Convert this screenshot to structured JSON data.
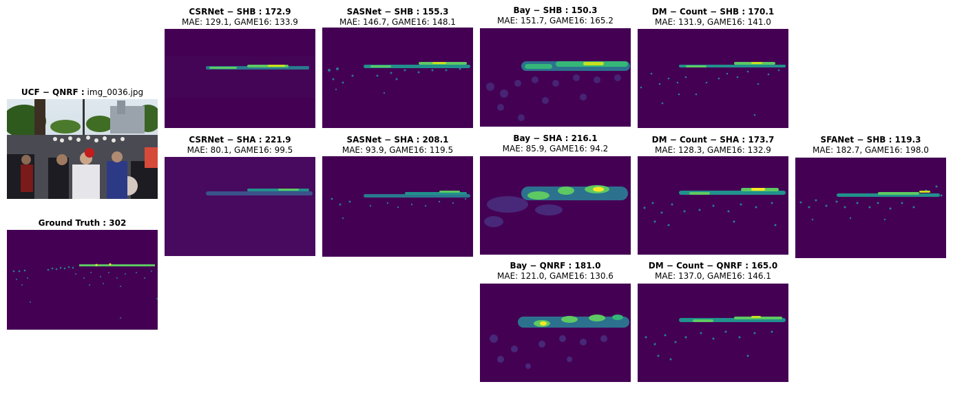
{
  "figure": {
    "input": {
      "title_bold": "UCF − QNRF :",
      "filename": "img_0036.jpg"
    },
    "ground_truth": {
      "title": "Ground Truth : 302"
    },
    "panels": [
      {
        "id": "csrnet-shb",
        "title": "CSRNet − SHB : 172.9",
        "metrics": "MAE: 129.1, GAME16: 133.9"
      },
      {
        "id": "sasnet-shb",
        "title": "SASNet − SHB : 155.3",
        "metrics": "MAE: 146.7, GAME16: 148.1"
      },
      {
        "id": "bay-shb",
        "title": "Bay − SHB : 150.3",
        "metrics": "MAE: 151.7, GAME16: 165.2"
      },
      {
        "id": "dm-shb",
        "title": "DM − Count − SHB : 170.1",
        "metrics": "MAE: 131.9, GAME16: 141.0"
      },
      {
        "id": "csrnet-sha",
        "title": "CSRNet − SHA : 221.9",
        "metrics": "MAE: 80.1, GAME16: 99.5"
      },
      {
        "id": "sasnet-sha",
        "title": "SASNet − SHA : 208.1",
        "metrics": "MAE: 93.9, GAME16: 119.5"
      },
      {
        "id": "bay-sha",
        "title": "Bay − SHA : 216.1",
        "metrics": "MAE: 85.9, GAME16: 94.2"
      },
      {
        "id": "dm-sha",
        "title": "DM − Count − SHA : 173.7",
        "metrics": "MAE: 128.3, GAME16: 132.9"
      },
      {
        "id": "sfanet-shb",
        "title": "SFANet − SHB : 119.3",
        "metrics": "MAE: 182.7, GAME16: 198.0"
      },
      {
        "id": "bay-qnrf",
        "title": "Bay − QNRF : 181.0",
        "metrics": "MAE: 121.0, GAME16: 130.6"
      },
      {
        "id": "dm-qnrf",
        "title": "DM − Count − QNRF : 165.0",
        "metrics": "MAE: 137.0, GAME16: 146.1"
      }
    ],
    "colors": {
      "density_bg": "#440154",
      "mid": "#21918c",
      "high": "#5ec962",
      "peak": "#fde725"
    }
  }
}
